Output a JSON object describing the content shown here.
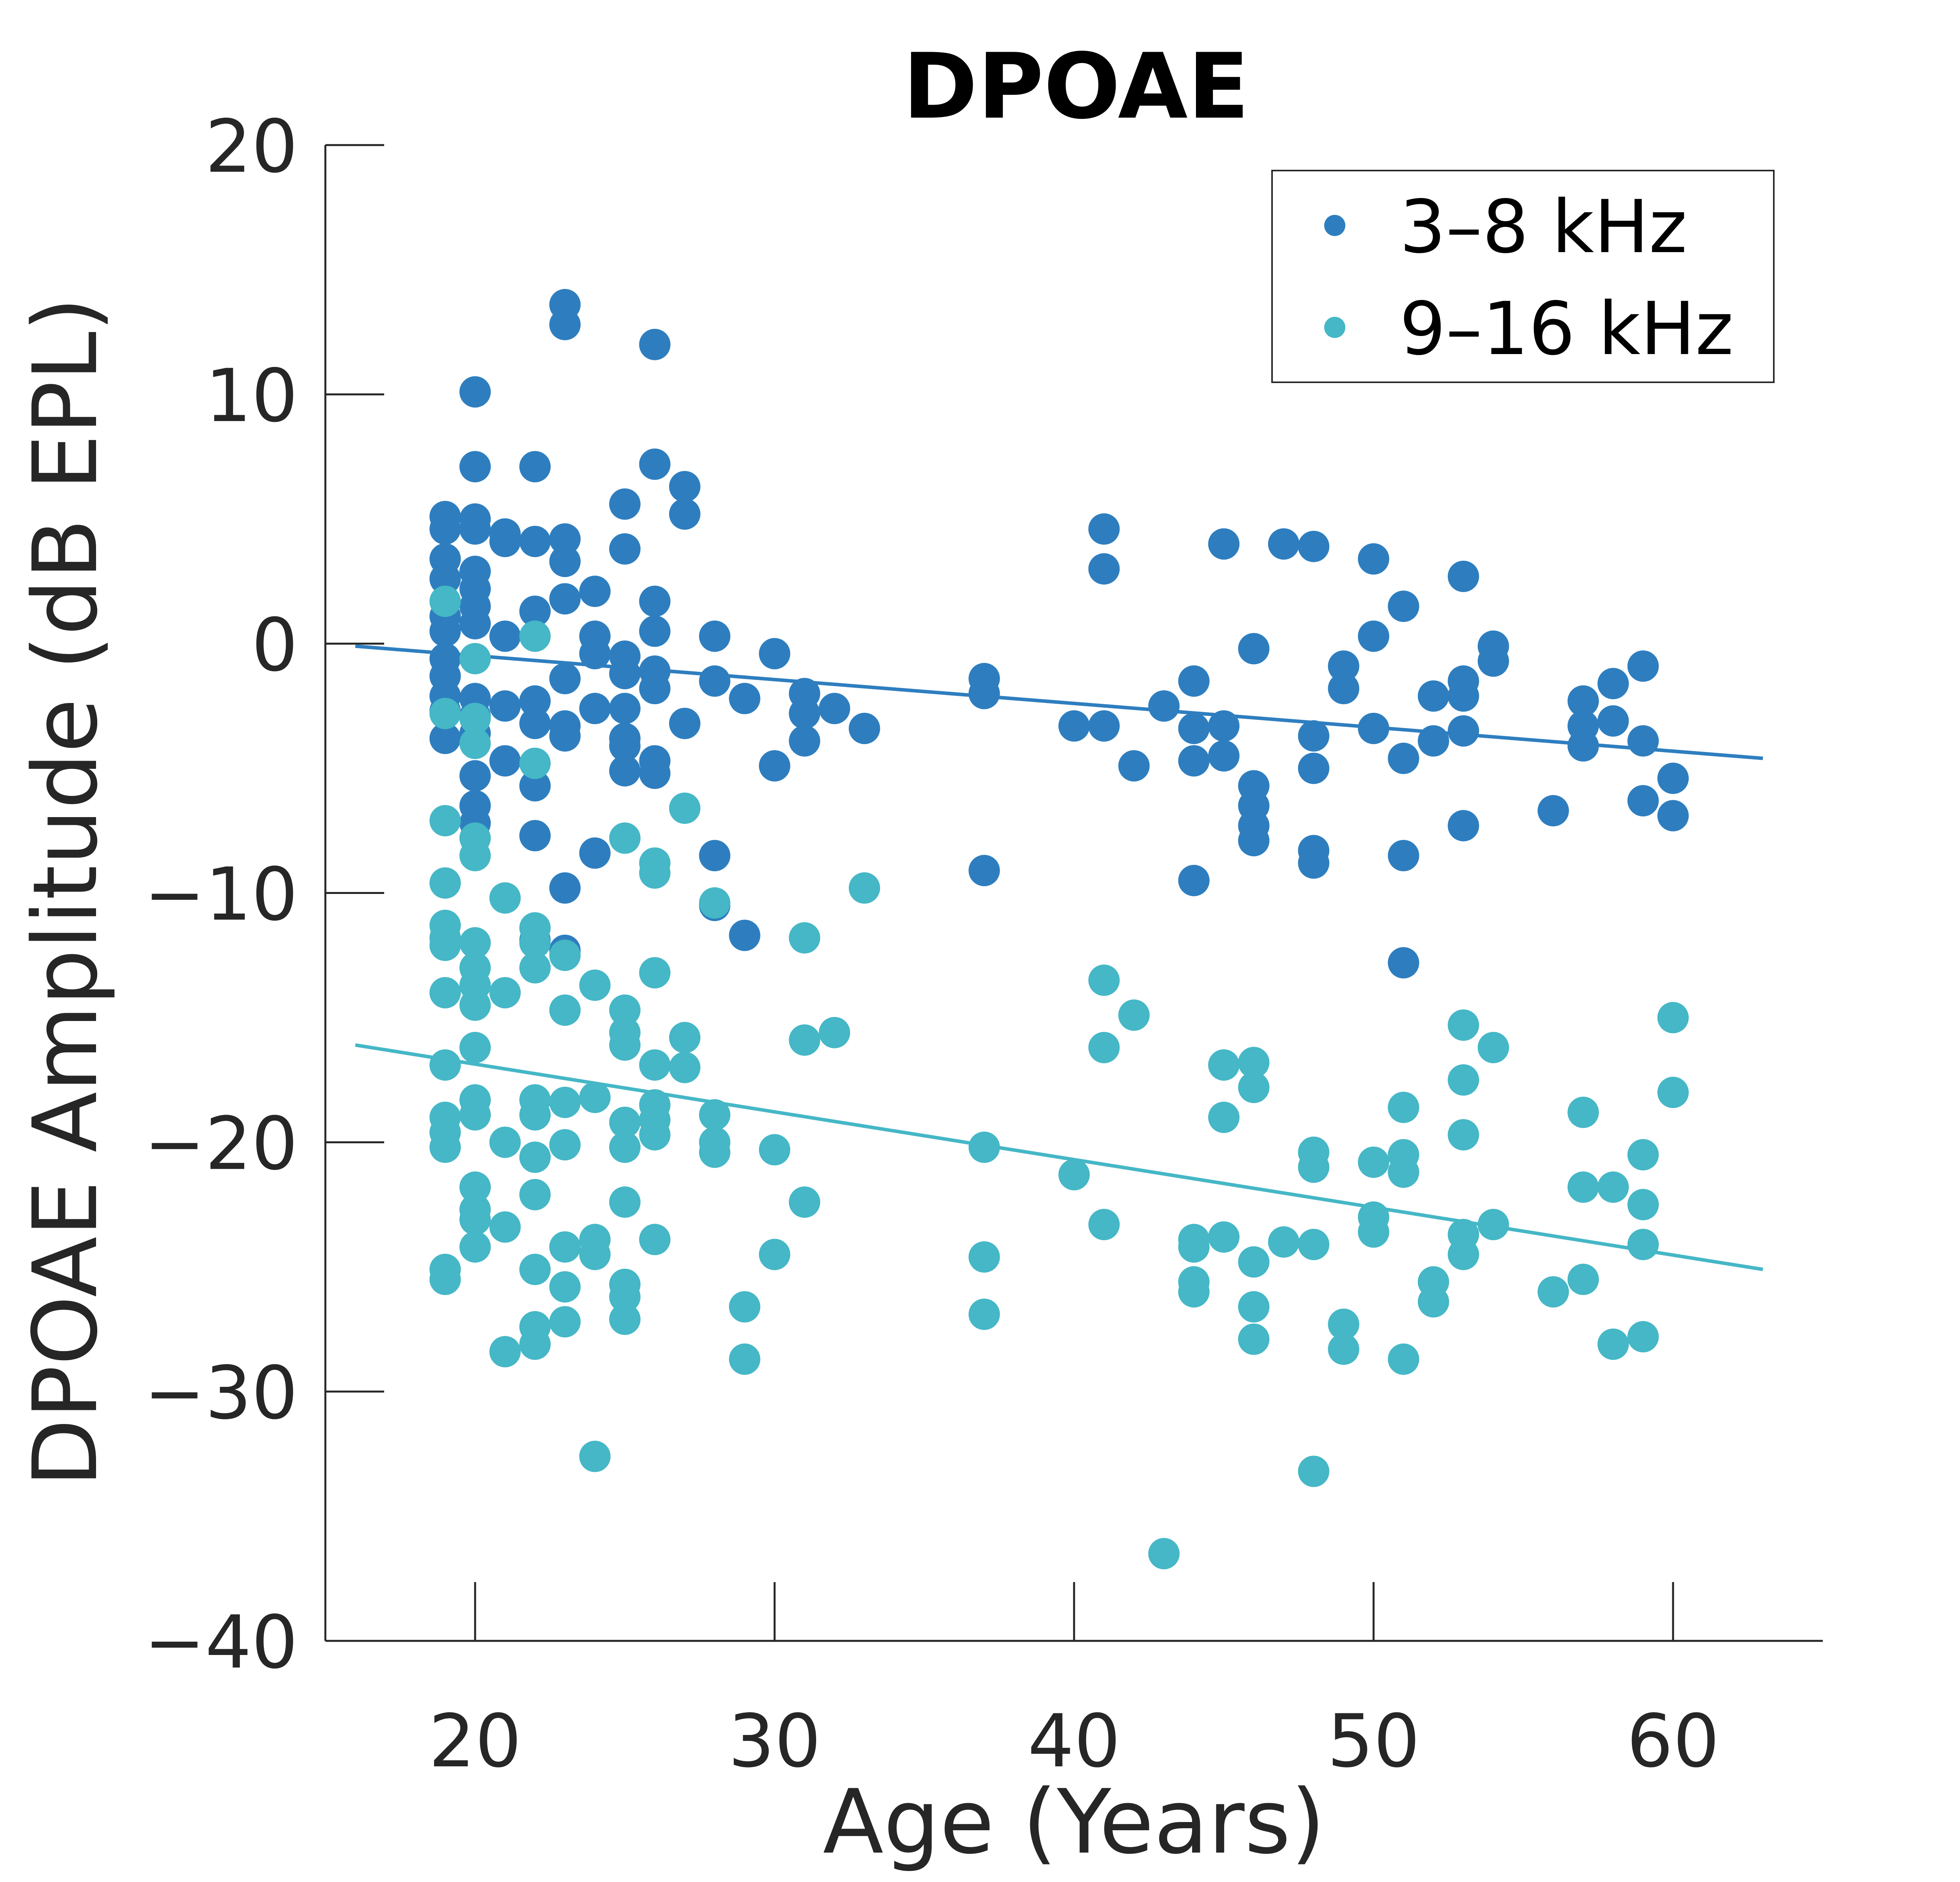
{
  "chart_data": {
    "type": "scatter",
    "title": "DPOAE",
    "xlabel": "Age (Years)",
    "ylabel": "DPOAE Amplitude (dB EPL)",
    "xlim": [
      15,
      65
    ],
    "ylim": [
      -40,
      20
    ],
    "xticks": [
      20,
      30,
      40,
      50,
      60
    ],
    "yticks": [
      20,
      10,
      0,
      -10,
      -20,
      -30,
      -40
    ],
    "xtick_labels": [
      "20",
      "30",
      "40",
      "50",
      "60"
    ],
    "ytick_labels": [
      "20",
      "10",
      "0",
      "−10",
      "−20",
      "−30",
      "−40"
    ],
    "grid": false,
    "legend_position": "top-right",
    "series": [
      {
        "name": "3–8 kHz",
        "color": "#2E7EBF",
        "points": [
          [
            19,
            5.1
          ],
          [
            19,
            4.6
          ],
          [
            19,
            3.4
          ],
          [
            19,
            2.6
          ],
          [
            19,
            1.1
          ],
          [
            19,
            0.5
          ],
          [
            19,
            -0.6
          ],
          [
            19,
            -1.3
          ],
          [
            19,
            -2.1
          ],
          [
            19,
            -2.7
          ],
          [
            19,
            -3.8
          ],
          [
            20,
            10.1
          ],
          [
            20,
            7.1
          ],
          [
            20,
            5
          ],
          [
            20,
            4.6
          ],
          [
            20,
            2.9
          ],
          [
            20,
            2.2
          ],
          [
            20,
            1.5
          ],
          [
            20,
            0.8
          ],
          [
            20,
            -2.2
          ],
          [
            20,
            -2.9
          ],
          [
            20,
            -3.6
          ],
          [
            20,
            -5.3
          ],
          [
            20,
            -6.5
          ],
          [
            20,
            -7.2
          ],
          [
            21,
            4.4
          ],
          [
            21,
            4.1
          ],
          [
            21,
            0.3
          ],
          [
            21,
            -2.5
          ],
          [
            21,
            -4.7
          ],
          [
            22,
            7.1
          ],
          [
            22,
            4.1
          ],
          [
            22,
            1.3
          ],
          [
            22,
            -2.3
          ],
          [
            22,
            -3.2
          ],
          [
            22,
            -5.7
          ],
          [
            22,
            -7.7
          ],
          [
            22,
            -11.9
          ],
          [
            23,
            13.6
          ],
          [
            23,
            12.8
          ],
          [
            23,
            4.2
          ],
          [
            23,
            3.3
          ],
          [
            23,
            1.8
          ],
          [
            23,
            -1.4
          ],
          [
            23,
            -3.3
          ],
          [
            23,
            -3.7
          ],
          [
            23,
            -9.8
          ],
          [
            23,
            -12.3
          ],
          [
            24,
            2.1
          ],
          [
            24,
            0.3
          ],
          [
            24,
            -0.4
          ],
          [
            24,
            -2.6
          ],
          [
            24,
            -8.4
          ],
          [
            25,
            5.6
          ],
          [
            25,
            3.8
          ],
          [
            25,
            -0.5
          ],
          [
            25,
            -1.2
          ],
          [
            25,
            -2.6
          ],
          [
            25,
            -3.8
          ],
          [
            25,
            -4.1
          ],
          [
            25,
            -5.1
          ],
          [
            26,
            12
          ],
          [
            26,
            7.2
          ],
          [
            26,
            1.7
          ],
          [
            26,
            0.5
          ],
          [
            26,
            -1.1
          ],
          [
            26,
            -1.8
          ],
          [
            26,
            -4.7
          ],
          [
            26,
            -5.2
          ],
          [
            27,
            6.3
          ],
          [
            27,
            5.2
          ],
          [
            27,
            -3.2
          ],
          [
            28,
            0.3
          ],
          [
            28,
            -1.5
          ],
          [
            28,
            -8.5
          ],
          [
            28,
            -10.5
          ],
          [
            29,
            -2.2
          ],
          [
            29,
            -11.7
          ],
          [
            30,
            -0.4
          ],
          [
            30,
            -4.9
          ],
          [
            31,
            -2
          ],
          [
            31,
            -2.8
          ],
          [
            31,
            -3.9
          ],
          [
            32,
            -2.6
          ],
          [
            33,
            -3.4
          ],
          [
            37,
            -1.4
          ],
          [
            37,
            -2
          ],
          [
            37,
            -9.1
          ],
          [
            40,
            -3.3
          ],
          [
            41,
            4.6
          ],
          [
            41,
            3
          ],
          [
            41,
            -3.3
          ],
          [
            42,
            -4.9
          ],
          [
            43,
            -2.5
          ],
          [
            44,
            -1.5
          ],
          [
            44,
            -3.4
          ],
          [
            44,
            -4.7
          ],
          [
            44,
            -9.5
          ],
          [
            45,
            4
          ],
          [
            45,
            -3.3
          ],
          [
            45,
            -4.5
          ],
          [
            46,
            -0.2
          ],
          [
            46,
            -5.7
          ],
          [
            46,
            -6.5
          ],
          [
            46,
            -7.3
          ],
          [
            46,
            -7.9
          ],
          [
            47,
            4
          ],
          [
            48,
            3.9
          ],
          [
            48,
            -3.7
          ],
          [
            48,
            -5
          ],
          [
            48,
            -8.3
          ],
          [
            48,
            -8.8
          ],
          [
            49,
            -0.9
          ],
          [
            49,
            -1.8
          ],
          [
            50,
            3.4
          ],
          [
            50,
            0.3
          ],
          [
            50,
            -3.4
          ],
          [
            51,
            1.5
          ],
          [
            51,
            -4.6
          ],
          [
            51,
            -8.5
          ],
          [
            51,
            -12.8
          ],
          [
            52,
            -2.1
          ],
          [
            52,
            -3.9
          ],
          [
            53,
            2.7
          ],
          [
            53,
            -1.5
          ],
          [
            53,
            -2.1
          ],
          [
            53,
            -3.5
          ],
          [
            53,
            -7.3
          ],
          [
            54,
            -0.1
          ],
          [
            54,
            -0.7
          ],
          [
            56,
            -6.7
          ],
          [
            57,
            -2.3
          ],
          [
            57,
            -3.3
          ],
          [
            57,
            -4.1
          ],
          [
            58,
            -1.6
          ],
          [
            58,
            -3.1
          ],
          [
            59,
            -0.9
          ],
          [
            59,
            -3.9
          ],
          [
            59,
            -6.3
          ],
          [
            60,
            -5.4
          ],
          [
            60,
            -6.9
          ]
        ],
        "trend": {
          "x": [
            16,
            63
          ],
          "y": [
            -0.1,
            -4.6
          ]
        }
      },
      {
        "name": "9–16 kHz",
        "color": "#45B7C6",
        "points": [
          [
            19,
            1.7
          ],
          [
            19,
            -2.8
          ],
          [
            19,
            -7.1
          ],
          [
            19,
            -9.6
          ],
          [
            19,
            -11.3
          ],
          [
            19,
            -11.8
          ],
          [
            19,
            -12.1
          ],
          [
            19,
            -14
          ],
          [
            19,
            -16.9
          ],
          [
            19,
            -19
          ],
          [
            19,
            -19.6
          ],
          [
            19,
            -20.2
          ],
          [
            19,
            -25.1
          ],
          [
            19,
            -25.5
          ],
          [
            20,
            -0.6
          ],
          [
            20,
            -3
          ],
          [
            20,
            -4
          ],
          [
            20,
            -7.8
          ],
          [
            20,
            -8.5
          ],
          [
            20,
            -12
          ],
          [
            20,
            -13
          ],
          [
            20,
            -13.7
          ],
          [
            20,
            -14.5
          ],
          [
            20,
            -16.2
          ],
          [
            20,
            -18.3
          ],
          [
            20,
            -18.9
          ],
          [
            20,
            -21.8
          ],
          [
            20,
            -22.7
          ],
          [
            20,
            -23.1
          ],
          [
            20,
            -24.2
          ],
          [
            21,
            -10.2
          ],
          [
            21,
            -14
          ],
          [
            21,
            -20
          ],
          [
            21,
            -23.4
          ],
          [
            21,
            -28.4
          ],
          [
            22,
            0.3
          ],
          [
            22,
            -4.8
          ],
          [
            22,
            -11.4
          ],
          [
            22,
            -12
          ],
          [
            22,
            -13
          ],
          [
            22,
            -18.3
          ],
          [
            22,
            -18.9
          ],
          [
            22,
            -20.6
          ],
          [
            22,
            -22.1
          ],
          [
            22,
            -25.1
          ],
          [
            22,
            -27.4
          ],
          [
            22,
            -28.1
          ],
          [
            23,
            -12.5
          ],
          [
            23,
            -14.7
          ],
          [
            23,
            -18.4
          ],
          [
            23,
            -20.1
          ],
          [
            23,
            -24.2
          ],
          [
            23,
            -25.8
          ],
          [
            23,
            -27.2
          ],
          [
            24,
            -13.7
          ],
          [
            24,
            -18.2
          ],
          [
            24,
            -23.9
          ],
          [
            24,
            -24.5
          ],
          [
            24,
            -32.6
          ],
          [
            25,
            -7.8
          ],
          [
            25,
            -14.7
          ],
          [
            25,
            -15.6
          ],
          [
            25,
            -16.1
          ],
          [
            25,
            -19.2
          ],
          [
            25,
            -20.2
          ],
          [
            25,
            -22.4
          ],
          [
            25,
            -25.7
          ],
          [
            25,
            -26.2
          ],
          [
            25,
            -27.1
          ],
          [
            26,
            -8.8
          ],
          [
            26,
            -9.2
          ],
          [
            26,
            -13.2
          ],
          [
            26,
            -16.9
          ],
          [
            26,
            -18.5
          ],
          [
            26,
            -19.1
          ],
          [
            26,
            -19.7
          ],
          [
            26,
            -23.9
          ],
          [
            27,
            -6.6
          ],
          [
            27,
            -15.8
          ],
          [
            27,
            -17
          ],
          [
            28,
            -10.4
          ],
          [
            28,
            -18.9
          ],
          [
            28,
            -20
          ],
          [
            28,
            -20.4
          ],
          [
            29,
            -26.6
          ],
          [
            29,
            -28.7
          ],
          [
            30,
            -20.3
          ],
          [
            30,
            -24.5
          ],
          [
            31,
            -11.8
          ],
          [
            31,
            -15.9
          ],
          [
            31,
            -22.4
          ],
          [
            32,
            -15.6
          ],
          [
            33,
            -9.8
          ],
          [
            37,
            -20.2
          ],
          [
            37,
            -24.6
          ],
          [
            37,
            -26.9
          ],
          [
            40,
            -21.3
          ],
          [
            41,
            -13.5
          ],
          [
            41,
            -16.2
          ],
          [
            41,
            -23.3
          ],
          [
            42,
            -14.9
          ],
          [
            43,
            -36.5
          ],
          [
            44,
            -23.9
          ],
          [
            44,
            -24.2
          ],
          [
            44,
            -25.6
          ],
          [
            44,
            -26
          ],
          [
            45,
            -16.9
          ],
          [
            45,
            -19
          ],
          [
            45,
            -23.8
          ],
          [
            46,
            -16.8
          ],
          [
            46,
            -17.8
          ],
          [
            46,
            -24.8
          ],
          [
            46,
            -26.6
          ],
          [
            46,
            -27.9
          ],
          [
            47,
            -24
          ],
          [
            48,
            -20.4
          ],
          [
            48,
            -21
          ],
          [
            48,
            -24.1
          ],
          [
            48,
            -33.2
          ],
          [
            49,
            -27.3
          ],
          [
            49,
            -28.3
          ],
          [
            50,
            -20.8
          ],
          [
            50,
            -23
          ],
          [
            50,
            -23.6
          ],
          [
            51,
            -18.6
          ],
          [
            51,
            -20.5
          ],
          [
            51,
            -21.2
          ],
          [
            51,
            -28.7
          ],
          [
            52,
            -25.6
          ],
          [
            52,
            -26.4
          ],
          [
            53,
            -15.3
          ],
          [
            53,
            -17.5
          ],
          [
            53,
            -19.7
          ],
          [
            53,
            -23.7
          ],
          [
            53,
            -24.5
          ],
          [
            54,
            -16.2
          ],
          [
            54,
            -23.3
          ],
          [
            56,
            -26
          ],
          [
            57,
            -18.8
          ],
          [
            57,
            -21.8
          ],
          [
            57,
            -25.5
          ],
          [
            58,
            -21.8
          ],
          [
            58,
            -28.1
          ],
          [
            59,
            -20.5
          ],
          [
            59,
            -22.5
          ],
          [
            59,
            -24.1
          ],
          [
            59,
            -27.8
          ],
          [
            60,
            -15
          ],
          [
            60,
            -18
          ]
        ],
        "trend": {
          "x": [
            16,
            63
          ],
          "y": [
            -16.1,
            -25.1
          ]
        }
      }
    ]
  }
}
